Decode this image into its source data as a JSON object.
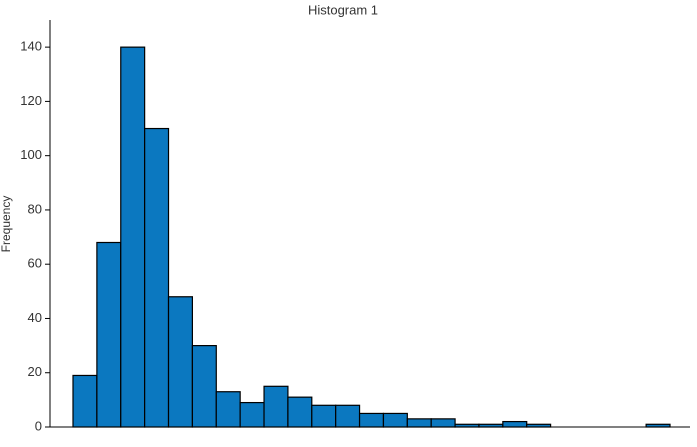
{
  "chart_data": {
    "type": "histogram",
    "title": "Histogram 1",
    "y_label": "Frequency",
    "values": [
      19,
      68,
      140,
      110,
      48,
      30,
      13,
      9,
      15,
      11,
      8,
      8,
      5,
      5,
      3,
      3,
      1,
      1,
      2,
      1,
      0,
      0,
      0,
      0,
      1
    ],
    "color": "#0b78c0",
    "edge_color": "#000000",
    "ylim": [
      0,
      150
    ],
    "yticks": [
      0,
      20,
      40,
      60,
      80,
      100,
      120,
      140
    ]
  }
}
